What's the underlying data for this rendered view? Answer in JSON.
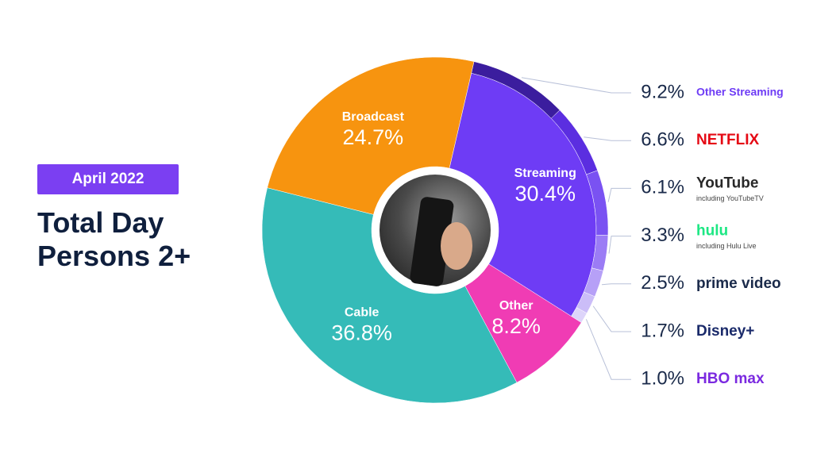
{
  "chart_data": {
    "type": "pie",
    "subtitle": "April 2022",
    "title": "Total Day Persons 2+",
    "categories": [
      "Streaming",
      "Other",
      "Cable",
      "Broadcast"
    ],
    "values": [
      30.4,
      8.2,
      36.8,
      24.7
    ],
    "value_labels": [
      "30.4%",
      "8.2%",
      "36.8%",
      "24.7%"
    ],
    "colors": [
      "#6e3cf5",
      "#f03cb4",
      "#35bbb8",
      "#f7940f"
    ],
    "streaming_breakdown": {
      "categories": [
        "Other Streaming",
        "NETFLIX",
        "YouTube",
        "hulu",
        "prime video",
        "Disney+",
        "HBO max"
      ],
      "sublabels": [
        null,
        null,
        "including YouTubeTV",
        "including Hulu Live",
        null,
        null,
        null
      ],
      "values": [
        9.2,
        6.6,
        6.1,
        3.3,
        2.5,
        1.7,
        1.0
      ],
      "value_labels": [
        "9.2%",
        "6.6%",
        "6.1%",
        "3.3%",
        "2.5%",
        "1.7%",
        "1.0%"
      ],
      "colors": [
        "#3b1d9e",
        "#5b2ee0",
        "#7a52f2",
        "#9b7cf5",
        "#b6a0f7",
        "#cbbdf8",
        "#ddd4fa"
      ],
      "label_colors": [
        "#6e3cf5",
        "#e50914",
        "#282828",
        "#1ce783",
        "#1a2a4a",
        "#1a2a6a",
        "#7b2ae0"
      ]
    }
  }
}
